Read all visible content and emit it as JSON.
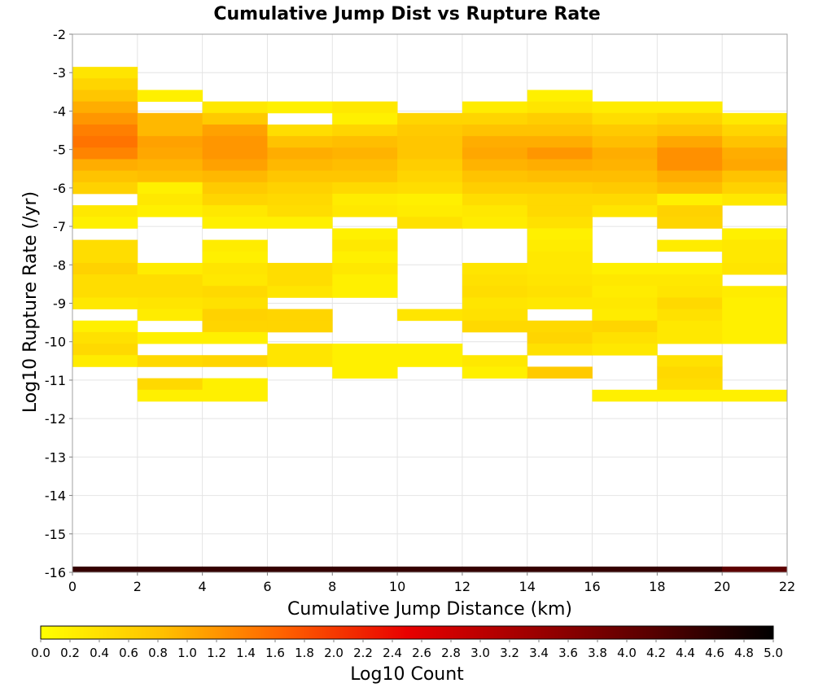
{
  "chart_data": {
    "type": "heatmap",
    "title": "Cumulative Jump Dist vs Rupture Rate",
    "xlabel": "Cumulative Jump Distance (km)",
    "ylabel": "Log10 Rupture Rate (/yr)",
    "xlim": [
      0,
      22
    ],
    "ylim": [
      -16,
      -2
    ],
    "x_ticks": [
      "0",
      "2",
      "4",
      "6",
      "8",
      "10",
      "12",
      "14",
      "16",
      "18",
      "20",
      "22"
    ],
    "y_ticks": [
      "-2",
      "-3",
      "-4",
      "-5",
      "-6",
      "-7",
      "-8",
      "-9",
      "-10",
      "-11",
      "-12",
      "-13",
      "-14",
      "-15",
      "-16"
    ],
    "grid": true,
    "bin_width_x": 2,
    "bin_height_y": 0.3,
    "colorbar": {
      "label": "Log10 Count",
      "range": [
        0,
        5
      ],
      "position": "bottom",
      "tick_labels": [
        "0.0",
        "0.2",
        "0.4",
        "0.6",
        "0.8",
        "1.0",
        "1.2",
        "1.4",
        "1.6",
        "1.8",
        "2.0",
        "2.2",
        "2.4",
        "2.6",
        "2.8",
        "3.0",
        "3.2",
        "3.4",
        "3.6",
        "3.8",
        "4.0",
        "4.2",
        "4.4",
        "4.6",
        "4.8",
        "5.0"
      ],
      "colors": [
        "#ffff00",
        "#ffc000",
        "#ff6000",
        "#e80000",
        "#a00000",
        "#580000",
        "#000000"
      ]
    },
    "columns": [
      {
        "x": 0,
        "cells": [
          [
            -3.0,
            0.35
          ],
          [
            -3.3,
            0.55
          ],
          [
            -3.6,
            0.75
          ],
          [
            -3.9,
            1.0
          ],
          [
            -4.2,
            1.2
          ],
          [
            -4.5,
            1.4
          ],
          [
            -4.8,
            1.5
          ],
          [
            -5.1,
            1.35
          ],
          [
            -5.4,
            1.0
          ],
          [
            -5.7,
            0.8
          ],
          [
            -6.0,
            0.6
          ],
          [
            -6.6,
            0.3
          ],
          [
            -6.9,
            0.2
          ],
          [
            -7.5,
            0.45
          ],
          [
            -7.8,
            0.45
          ],
          [
            -8.1,
            0.6
          ],
          [
            -8.4,
            0.45
          ],
          [
            -8.7,
            0.45
          ],
          [
            -9.0,
            0.3
          ],
          [
            -9.6,
            0.2
          ],
          [
            -9.9,
            0.4
          ],
          [
            -10.2,
            0.5
          ],
          [
            -10.5,
            0.25
          ],
          [
            -16.0,
            4.5
          ]
        ]
      },
      {
        "x": 2,
        "cells": [
          [
            -3.6,
            0.2
          ],
          [
            -4.2,
            0.9
          ],
          [
            -4.5,
            0.9
          ],
          [
            -4.8,
            1.1
          ],
          [
            -5.1,
            1.05
          ],
          [
            -5.4,
            0.95
          ],
          [
            -5.7,
            0.85
          ],
          [
            -6.0,
            0.2
          ],
          [
            -6.3,
            0.3
          ],
          [
            -6.6,
            0.2
          ],
          [
            -8.1,
            0.25
          ],
          [
            -8.4,
            0.45
          ],
          [
            -8.7,
            0.45
          ],
          [
            -9.0,
            0.35
          ],
          [
            -9.3,
            0.25
          ],
          [
            -9.9,
            0.2
          ],
          [
            -10.5,
            0.5
          ],
          [
            -11.1,
            0.5
          ],
          [
            -11.4,
            0.2
          ],
          [
            -16.0,
            4.5
          ]
        ]
      },
      {
        "x": 4,
        "cells": [
          [
            -3.9,
            0.3
          ],
          [
            -4.2,
            0.7
          ],
          [
            -4.5,
            1.1
          ],
          [
            -4.8,
            1.2
          ],
          [
            -5.1,
            1.2
          ],
          [
            -5.4,
            1.1
          ],
          [
            -5.7,
            0.9
          ],
          [
            -6.0,
            0.7
          ],
          [
            -6.3,
            0.55
          ],
          [
            -6.6,
            0.3
          ],
          [
            -6.9,
            0.2
          ],
          [
            -7.5,
            0.25
          ],
          [
            -7.8,
            0.2
          ],
          [
            -8.1,
            0.35
          ],
          [
            -8.4,
            0.3
          ],
          [
            -8.7,
            0.5
          ],
          [
            -9.0,
            0.4
          ],
          [
            -9.3,
            0.6
          ],
          [
            -9.6,
            0.55
          ],
          [
            -9.9,
            0.2
          ],
          [
            -10.5,
            0.55
          ],
          [
            -11.1,
            0.2
          ],
          [
            -11.4,
            0.2
          ],
          [
            -16.0,
            4.5
          ]
        ]
      },
      {
        "x": 6,
        "cells": [
          [
            -3.9,
            0.2
          ],
          [
            -4.5,
            0.45
          ],
          [
            -4.8,
            0.8
          ],
          [
            -5.1,
            1.0
          ],
          [
            -5.4,
            0.9
          ],
          [
            -5.7,
            0.75
          ],
          [
            -6.0,
            0.6
          ],
          [
            -6.3,
            0.5
          ],
          [
            -6.6,
            0.45
          ],
          [
            -6.9,
            0.2
          ],
          [
            -8.1,
            0.45
          ],
          [
            -8.4,
            0.45
          ],
          [
            -8.7,
            0.35
          ],
          [
            -9.3,
            0.55
          ],
          [
            -9.6,
            0.55
          ],
          [
            -10.2,
            0.35
          ],
          [
            -10.5,
            0.35
          ],
          [
            -16.0,
            4.5
          ]
        ]
      },
      {
        "x": 8,
        "cells": [
          [
            -3.9,
            0.3
          ],
          [
            -4.2,
            0.2
          ],
          [
            -4.5,
            0.55
          ],
          [
            -4.8,
            0.85
          ],
          [
            -5.1,
            0.95
          ],
          [
            -5.4,
            0.85
          ],
          [
            -5.7,
            0.75
          ],
          [
            -6.0,
            0.5
          ],
          [
            -6.3,
            0.25
          ],
          [
            -6.6,
            0.3
          ],
          [
            -7.2,
            0.2
          ],
          [
            -7.5,
            0.3
          ],
          [
            -7.8,
            0.2
          ],
          [
            -8.1,
            0.3
          ],
          [
            -8.4,
            0.2
          ],
          [
            -8.7,
            0.2
          ],
          [
            -10.2,
            0.2
          ],
          [
            -10.5,
            0.2
          ],
          [
            -10.8,
            0.2
          ],
          [
            -16.0,
            4.5
          ]
        ]
      },
      {
        "x": 10,
        "cells": [
          [
            -4.2,
            0.55
          ],
          [
            -4.5,
            0.7
          ],
          [
            -4.8,
            0.75
          ],
          [
            -5.1,
            0.75
          ],
          [
            -5.4,
            0.65
          ],
          [
            -5.7,
            0.55
          ],
          [
            -6.0,
            0.45
          ],
          [
            -6.3,
            0.2
          ],
          [
            -6.6,
            0.25
          ],
          [
            -6.9,
            0.4
          ],
          [
            -9.3,
            0.35
          ],
          [
            -10.2,
            0.2
          ],
          [
            -10.5,
            0.2
          ],
          [
            -16.0,
            4.5
          ]
        ]
      },
      {
        "x": 12,
        "cells": [
          [
            -3.9,
            0.25
          ],
          [
            -4.2,
            0.55
          ],
          [
            -4.5,
            0.8
          ],
          [
            -4.8,
            1.0
          ],
          [
            -5.1,
            1.05
          ],
          [
            -5.4,
            0.95
          ],
          [
            -5.7,
            0.8
          ],
          [
            -6.0,
            0.65
          ],
          [
            -6.3,
            0.45
          ],
          [
            -6.6,
            0.3
          ],
          [
            -6.9,
            0.25
          ],
          [
            -8.1,
            0.35
          ],
          [
            -8.4,
            0.4
          ],
          [
            -8.7,
            0.45
          ],
          [
            -9.0,
            0.35
          ],
          [
            -9.3,
            0.4
          ],
          [
            -9.6,
            0.5
          ],
          [
            -10.5,
            0.3
          ],
          [
            -10.8,
            0.2
          ],
          [
            -16.0,
            4.5
          ]
        ]
      },
      {
        "x": 14,
        "cells": [
          [
            -3.6,
            0.2
          ],
          [
            -3.9,
            0.35
          ],
          [
            -4.2,
            0.65
          ],
          [
            -4.5,
            0.8
          ],
          [
            -4.8,
            1.0
          ],
          [
            -5.1,
            1.2
          ],
          [
            -5.4,
            1.0
          ],
          [
            -5.7,
            0.85
          ],
          [
            -6.0,
            0.65
          ],
          [
            -6.3,
            0.5
          ],
          [
            -6.6,
            0.5
          ],
          [
            -6.9,
            0.4
          ],
          [
            -7.2,
            0.2
          ],
          [
            -7.5,
            0.25
          ],
          [
            -7.8,
            0.3
          ],
          [
            -8.1,
            0.3
          ],
          [
            -8.4,
            0.35
          ],
          [
            -8.7,
            0.4
          ],
          [
            -9.0,
            0.3
          ],
          [
            -9.6,
            0.5
          ],
          [
            -9.9,
            0.55
          ],
          [
            -10.2,
            0.4
          ],
          [
            -10.8,
            0.7
          ],
          [
            -16.0,
            4.5
          ]
        ]
      },
      {
        "x": 16,
        "cells": [
          [
            -3.9,
            0.25
          ],
          [
            -4.2,
            0.45
          ],
          [
            -4.5,
            0.7
          ],
          [
            -4.8,
            0.85
          ],
          [
            -5.1,
            1.0
          ],
          [
            -5.4,
            0.95
          ],
          [
            -5.7,
            0.85
          ],
          [
            -6.0,
            0.7
          ],
          [
            -6.3,
            0.5
          ],
          [
            -6.6,
            0.35
          ],
          [
            -8.1,
            0.2
          ],
          [
            -8.4,
            0.3
          ],
          [
            -8.7,
            0.25
          ],
          [
            -9.0,
            0.3
          ],
          [
            -9.3,
            0.25
          ],
          [
            -9.6,
            0.55
          ],
          [
            -9.9,
            0.4
          ],
          [
            -10.2,
            0.3
          ],
          [
            -11.4,
            0.2
          ],
          [
            -16.0,
            4.5
          ]
        ]
      },
      {
        "x": 18,
        "cells": [
          [
            -3.9,
            0.25
          ],
          [
            -4.2,
            0.55
          ],
          [
            -4.5,
            0.8
          ],
          [
            -4.8,
            1.05
          ],
          [
            -5.1,
            1.25
          ],
          [
            -5.4,
            1.25
          ],
          [
            -5.7,
            1.0
          ],
          [
            -6.0,
            0.85
          ],
          [
            -6.3,
            0.2
          ],
          [
            -6.6,
            0.6
          ],
          [
            -6.9,
            0.55
          ],
          [
            -7.5,
            0.25
          ],
          [
            -8.1,
            0.2
          ],
          [
            -8.4,
            0.3
          ],
          [
            -8.7,
            0.35
          ],
          [
            -9.0,
            0.5
          ],
          [
            -9.3,
            0.4
          ],
          [
            -9.6,
            0.3
          ],
          [
            -9.9,
            0.3
          ],
          [
            -10.5,
            0.4
          ],
          [
            -10.8,
            0.5
          ],
          [
            -11.1,
            0.45
          ],
          [
            -11.4,
            0.2
          ],
          [
            -16.0,
            4.5
          ]
        ]
      },
      {
        "x": 20,
        "cells": [
          [
            -4.2,
            0.3
          ],
          [
            -4.5,
            0.55
          ],
          [
            -4.8,
            0.8
          ],
          [
            -5.1,
            1.0
          ],
          [
            -5.4,
            1.05
          ],
          [
            -5.7,
            0.8
          ],
          [
            -6.0,
            0.6
          ],
          [
            -6.3,
            0.3
          ],
          [
            -7.2,
            0.2
          ],
          [
            -7.5,
            0.3
          ],
          [
            -7.8,
            0.3
          ],
          [
            -8.1,
            0.35
          ],
          [
            -8.7,
            0.25
          ],
          [
            -9.0,
            0.2
          ],
          [
            -9.3,
            0.2
          ],
          [
            -9.6,
            0.2
          ],
          [
            -9.9,
            0.2
          ],
          [
            -11.4,
            0.2
          ],
          [
            -16.0,
            4.1
          ]
        ]
      }
    ]
  }
}
